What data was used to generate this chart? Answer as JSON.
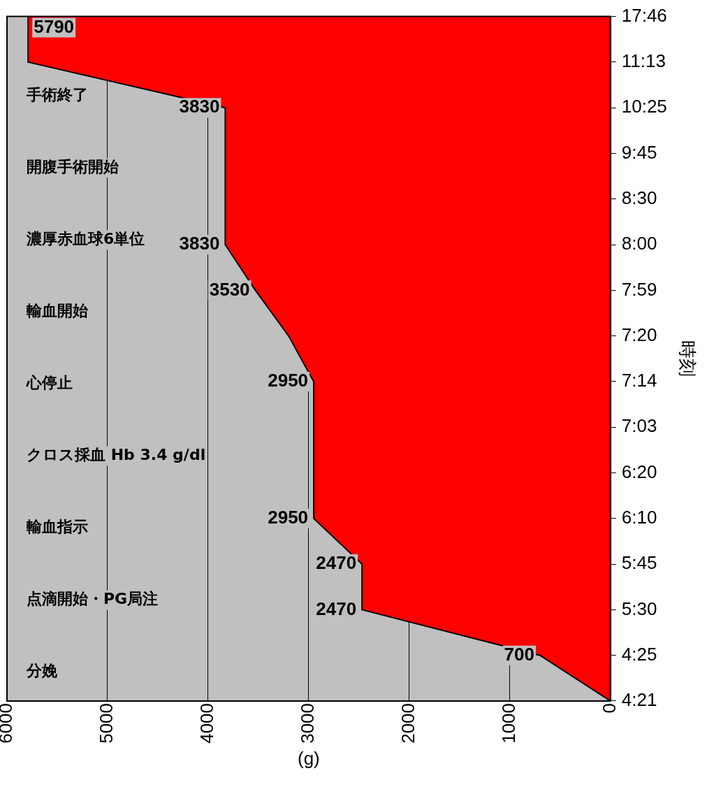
{
  "chart_data": {
    "type": "area",
    "orientation": "horizontal",
    "categories": [
      "17:46",
      "11:13",
      "10:25",
      "9:45",
      "8:30",
      "8:00",
      "7:59",
      "7:20",
      "7:14",
      "7:03",
      "6:20",
      "6:10",
      "5:45",
      "5:30",
      "4:25",
      "4:21"
    ],
    "values": [
      5790,
      5790,
      3830,
      3830,
      3830,
      3830,
      3530,
      3200,
      2950,
      2950,
      2950,
      2950,
      2470,
      2470,
      700,
      0
    ],
    "value_labels": [
      "5790",
      null,
      "3830",
      null,
      null,
      "3830",
      "3530",
      null,
      "2950",
      null,
      null,
      "2950",
      "2470",
      "2470",
      "700",
      null
    ],
    "color": "#ff0000",
    "xlim": [
      6000,
      0
    ],
    "xticks": [
      0,
      1000,
      2000,
      3000,
      4000,
      5000,
      6000
    ],
    "xlabel": "(g)",
    "ylabel": "時刻",
    "grid": "x",
    "legend": false,
    "annotations": [
      "分娩",
      "点滴開始・PG局注",
      "輸血指示",
      "クロス採血 Hb 3.4 g/dl",
      "心停止",
      "輸血開始",
      "濃厚赤血球6単位",
      "開腹手術開始",
      "手術終了"
    ]
  }
}
